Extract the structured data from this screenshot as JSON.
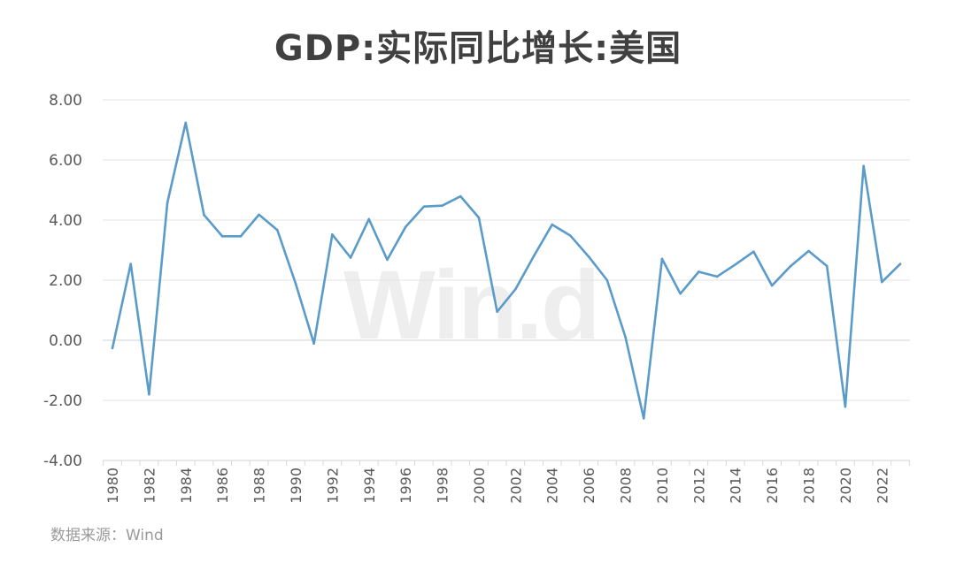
{
  "title": "GDP:实际同比增长:美国",
  "source": "数据来源：Wind",
  "watermark": "Win.d",
  "colors": {
    "line": "#5b9bc9",
    "grid": "#e3e3e3",
    "axis": "#d9d9d9",
    "tick_text": "#595959"
  },
  "chart_data": {
    "type": "line",
    "title": "GDP:实际同比增长:美国",
    "xlabel": "",
    "ylabel": "",
    "ylim": [
      -4,
      8
    ],
    "yticks": [
      "-4.00",
      "-2.00",
      "0.00",
      "2.00",
      "4.00",
      "6.00",
      "8.00"
    ],
    "xticks": [
      "1980",
      "1982",
      "1984",
      "1986",
      "1988",
      "1990",
      "1992",
      "1994",
      "1996",
      "1998",
      "2000",
      "2002",
      "2004",
      "2006",
      "2008",
      "2010",
      "2012",
      "2014",
      "2016",
      "2018",
      "2020",
      "2022"
    ],
    "grid": true,
    "series": [
      {
        "x": [
          1980,
          1981,
          1982,
          1983,
          1984,
          1985,
          1986,
          1987,
          1988,
          1989,
          1990,
          1991,
          1992,
          1993,
          1994,
          1995,
          1996,
          1997,
          1998,
          1999,
          2000,
          2001,
          2002,
          2003,
          2004,
          2005,
          2006,
          2007,
          2008,
          2009,
          2010,
          2011,
          2012,
          2013,
          2014,
          2015,
          2016,
          2017,
          2018,
          2019,
          2020,
          2021,
          2022,
          2023
        ],
        "values": [
          -0.26,
          2.54,
          -1.8,
          4.58,
          7.24,
          4.17,
          3.46,
          3.46,
          4.18,
          3.67,
          1.89,
          -0.11,
          3.52,
          2.75,
          4.03,
          2.68,
          3.77,
          4.45,
          4.48,
          4.79,
          4.08,
          0.95,
          1.7,
          2.8,
          3.85,
          3.48,
          2.78,
          2.0,
          0.11,
          -2.6,
          2.71,
          1.55,
          2.28,
          2.12,
          2.52,
          2.95,
          1.82,
          2.46,
          2.97,
          2.47,
          -2.21,
          5.8,
          1.94,
          2.54
        ]
      }
    ]
  }
}
